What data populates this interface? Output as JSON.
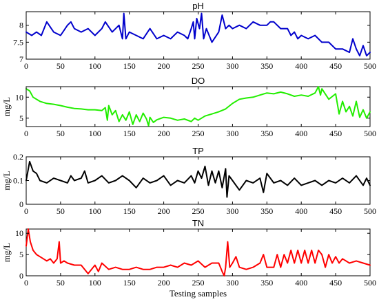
{
  "chart_data": [
    {
      "type": "line",
      "title": "pH",
      "xlabel": "",
      "ylabel": "",
      "xlim": [
        0,
        500
      ],
      "ylim": [
        7,
        8.4
      ],
      "xticks": [
        "0",
        "50",
        "100",
        "150",
        "200",
        "250",
        "300",
        "350",
        "400",
        "450",
        "500"
      ],
      "yticks": [
        "7",
        "7.5",
        "8"
      ],
      "grid": false,
      "color": "#0000cc",
      "series": [
        {
          "x": [
            0,
            8,
            15,
            22,
            30,
            40,
            50,
            60,
            65,
            70,
            80,
            90,
            100,
            110,
            115,
            125,
            135,
            140,
            142,
            145,
            150,
            160,
            170,
            180,
            190,
            200,
            210,
            220,
            230,
            235,
            240,
            243,
            245,
            248,
            252,
            255,
            258,
            262,
            270,
            280,
            285,
            290,
            295,
            300,
            310,
            320,
            330,
            340,
            350,
            355,
            360,
            370,
            380,
            385,
            390,
            395,
            400,
            410,
            420,
            430,
            440,
            450,
            460,
            470,
            475,
            480,
            485,
            490,
            495,
            500
          ],
          "values": [
            7.8,
            7.7,
            7.8,
            7.7,
            8.1,
            7.8,
            7.7,
            8.0,
            8.1,
            7.9,
            7.8,
            7.9,
            7.7,
            7.9,
            8.1,
            7.8,
            8.0,
            7.6,
            8.35,
            7.6,
            7.8,
            7.7,
            7.6,
            7.9,
            7.6,
            7.7,
            7.6,
            7.8,
            7.7,
            7.6,
            7.9,
            8.1,
            7.6,
            8.2,
            7.9,
            8.35,
            7.6,
            7.9,
            7.5,
            7.8,
            8.3,
            7.9,
            8.0,
            7.9,
            8.0,
            7.9,
            8.1,
            8.0,
            8.0,
            8.1,
            8.1,
            7.9,
            7.9,
            7.7,
            7.8,
            7.6,
            7.7,
            7.6,
            7.7,
            7.5,
            7.5,
            7.3,
            7.3,
            7.2,
            7.6,
            7.3,
            7.1,
            7.4,
            7.1,
            7.2
          ]
        }
      ]
    },
    {
      "type": "line",
      "title": "DO",
      "xlabel": "",
      "ylabel": "mg/L",
      "xlim": [
        0,
        500
      ],
      "ylim": [
        3,
        12.5
      ],
      "xticks": [
        "0",
        "50",
        "100",
        "150",
        "200",
        "250",
        "300",
        "350",
        "400",
        "450",
        "500"
      ],
      "yticks": [
        "5",
        "10"
      ],
      "grid": false,
      "color": "#22ee00",
      "series": [
        {
          "x": [
            0,
            5,
            10,
            20,
            30,
            40,
            50,
            60,
            70,
            80,
            90,
            100,
            110,
            115,
            118,
            120,
            125,
            130,
            135,
            140,
            145,
            150,
            155,
            160,
            165,
            170,
            175,
            178,
            180,
            185,
            190,
            200,
            210,
            220,
            230,
            240,
            245,
            250,
            260,
            270,
            280,
            290,
            300,
            310,
            320,
            330,
            340,
            350,
            360,
            370,
            380,
            390,
            400,
            410,
            420,
            425,
            428,
            430,
            440,
            450,
            455,
            460,
            465,
            470,
            475,
            480,
            485,
            490,
            495,
            500
          ],
          "values": [
            12,
            11.5,
            10,
            9,
            8.5,
            8.3,
            8,
            7.6,
            7.3,
            7.2,
            7,
            7,
            6.8,
            7.5,
            4.5,
            8,
            5.8,
            6.8,
            4.2,
            5.8,
            4.5,
            6.5,
            3.5,
            5.8,
            4.2,
            6.2,
            4.8,
            3.2,
            5.2,
            4,
            4.6,
            5.2,
            5,
            4.5,
            4.8,
            4.2,
            5,
            4.5,
            5.5,
            6,
            6.5,
            7.2,
            8.5,
            9.5,
            9.8,
            10,
            10.5,
            11,
            10.8,
            11.2,
            10.8,
            10.2,
            10.5,
            10.2,
            11,
            12.5,
            10.5,
            12,
            9.5,
            10.8,
            6,
            9,
            6.5,
            7.8,
            5.5,
            9,
            5.2,
            7,
            5,
            6.5
          ]
        }
      ]
    },
    {
      "type": "line",
      "title": "TP",
      "xlabel": "",
      "ylabel": "mg/L",
      "xlim": [
        0,
        500
      ],
      "ylim": [
        0,
        0.2
      ],
      "xticks": [
        "0",
        "50",
        "100",
        "150",
        "200",
        "250",
        "300",
        "350",
        "400",
        "450",
        "500"
      ],
      "yticks": [
        "0",
        "0.1",
        "0.2"
      ],
      "grid": false,
      "color": "#000000",
      "series": [
        {
          "x": [
            0,
            5,
            10,
            15,
            20,
            30,
            40,
            50,
            60,
            65,
            70,
            80,
            85,
            90,
            100,
            110,
            120,
            130,
            140,
            150,
            160,
            170,
            180,
            190,
            200,
            210,
            220,
            230,
            240,
            245,
            250,
            255,
            260,
            265,
            270,
            275,
            280,
            285,
            290,
            292,
            295,
            300,
            310,
            320,
            330,
            340,
            345,
            350,
            360,
            370,
            380,
            390,
            400,
            410,
            420,
            430,
            440,
            450,
            460,
            470,
            480,
            490,
            495,
            500
          ],
          "values": [
            0.1,
            0.18,
            0.14,
            0.13,
            0.1,
            0.09,
            0.11,
            0.1,
            0.09,
            0.12,
            0.1,
            0.11,
            0.14,
            0.09,
            0.1,
            0.12,
            0.09,
            0.1,
            0.12,
            0.1,
            0.07,
            0.11,
            0.09,
            0.1,
            0.12,
            0.08,
            0.1,
            0.09,
            0.12,
            0.09,
            0.14,
            0.11,
            0.16,
            0.08,
            0.14,
            0.09,
            0.14,
            0.07,
            0.15,
            0.03,
            0.12,
            0.1,
            0.06,
            0.1,
            0.09,
            0.11,
            0.05,
            0.13,
            0.09,
            0.1,
            0.08,
            0.11,
            0.08,
            0.09,
            0.1,
            0.08,
            0.1,
            0.09,
            0.11,
            0.09,
            0.12,
            0.08,
            0.11,
            0.08
          ]
        }
      ]
    },
    {
      "type": "line",
      "title": "TN",
      "xlabel": "Testing samples",
      "ylabel": "mg/L",
      "xlim": [
        0,
        500
      ],
      "ylim": [
        0,
        11
      ],
      "xticks": [
        "0",
        "50",
        "100",
        "150",
        "200",
        "250",
        "300",
        "350",
        "400",
        "450",
        "500"
      ],
      "yticks": [
        "0",
        "5",
        "10"
      ],
      "grid": false,
      "color": "#ff0000",
      "series": [
        {
          "x": [
            0,
            3,
            6,
            10,
            15,
            20,
            25,
            30,
            35,
            40,
            45,
            48,
            50,
            55,
            60,
            70,
            80,
            90,
            100,
            105,
            110,
            120,
            130,
            140,
            150,
            160,
            170,
            180,
            190,
            200,
            210,
            220,
            230,
            240,
            250,
            260,
            270,
            280,
            285,
            288,
            290,
            293,
            296,
            300,
            305,
            310,
            320,
            330,
            340,
            345,
            350,
            355,
            360,
            365,
            370,
            375,
            380,
            385,
            390,
            395,
            400,
            405,
            410,
            415,
            420,
            425,
            430,
            435,
            440,
            445,
            450,
            455,
            460,
            470,
            480,
            490,
            500
          ],
          "values": [
            7,
            11,
            8,
            6,
            5,
            4.5,
            4,
            3.5,
            4,
            3,
            4,
            8,
            3,
            3.5,
            3,
            2.5,
            2.5,
            0.5,
            2.5,
            1,
            3,
            1.5,
            2,
            1.5,
            1.5,
            2,
            1.5,
            1.5,
            2,
            2,
            2.5,
            2,
            3,
            2.5,
            3.5,
            2,
            3,
            3,
            1,
            0,
            2,
            8,
            2,
            3,
            4.5,
            2,
            1.5,
            2,
            3,
            5,
            2,
            2,
            2,
            5,
            2,
            5,
            3,
            6,
            3,
            6,
            3,
            6,
            3,
            6,
            3,
            6,
            5,
            2,
            5,
            3,
            4.5,
            3,
            4,
            3,
            3.5,
            3,
            2.5
          ]
        }
      ]
    }
  ]
}
